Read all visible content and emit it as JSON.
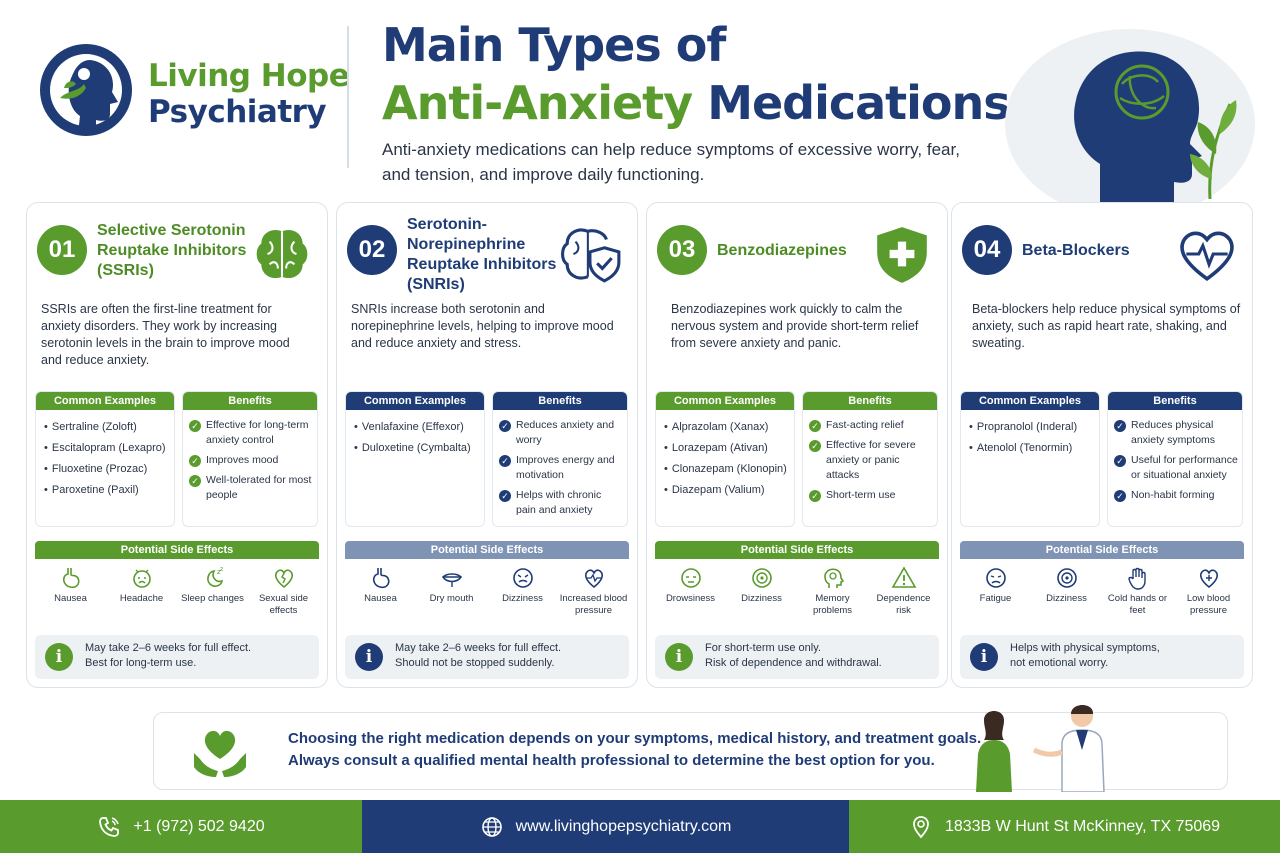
{
  "brand": {
    "line1": "Living Hope",
    "line2": "Psychiatry"
  },
  "header": {
    "title_line1": "Main Types of",
    "title_line2_green": "Anti-Anxiety",
    "title_line2_blue": "Medications",
    "subtitle": "Anti-anxiety medications can help reduce symptoms of excessive worry, fear, and tension, and improve daily functioning."
  },
  "colors": {
    "green": "#5a9b2e",
    "navy": "#1f3c77"
  },
  "cards": [
    {
      "number": "01",
      "name": "Selective Serotonin Reuptake Inhibitors (SSRIs)",
      "icon": "brain-icon",
      "description": "SSRIs are often the first-line treatment for anxiety disorders. They work by increasing serotonin levels in the brain to improve mood and reduce anxiety.",
      "examples_header": "Common Examples",
      "examples": [
        "Sertraline (Zoloft)",
        "Escitalopram (Lexapro)",
        "Fluoxetine (Prozac)",
        "Paroxetine (Paxil)"
      ],
      "benefits_header": "Benefits",
      "benefits": [
        "Effective for long-term anxiety control",
        "Improves mood",
        "Well-tolerated for most people"
      ],
      "side_effects_header": "Potential Side Effects",
      "side_effects": [
        "Nausea",
        "Headache",
        "Sleep changes",
        "Sexual side effects"
      ],
      "note_line1": "May take 2–6 weeks for full effect.",
      "note_line2": "Best for long-term use."
    },
    {
      "number": "02",
      "name": "Serotonin-Norepinephrine Reuptake Inhibitors (SNRIs)",
      "icon": "brain-shield-icon",
      "description": "SNRIs increase both serotonin and norepinephrine levels, helping to improve mood and reduce anxiety and stress.",
      "examples_header": "Common Examples",
      "examples": [
        "Venlafaxine (Effexor)",
        "Duloxetine (Cymbalta)"
      ],
      "benefits_header": "Benefits",
      "benefits": [
        "Reduces anxiety and worry",
        "Improves energy and motivation",
        "Helps with chronic pain and anxiety"
      ],
      "side_effects_header": "Potential Side Effects",
      "side_effects": [
        "Nausea",
        "Dry mouth",
        "Dizziness",
        "Increased blood pressure"
      ],
      "note_line1": "May take 2–6 weeks for full effect.",
      "note_line2": "Should not be stopped suddenly."
    },
    {
      "number": "03",
      "name": "Benzodiazepines",
      "icon": "medical-shield-icon",
      "description": "Benzodiazepines work quickly to calm the nervous system and provide short-term relief from severe anxiety and panic.",
      "examples_header": "Common Examples",
      "examples": [
        "Alprazolam (Xanax)",
        "Lorazepam (Ativan)",
        "Clonazepam (Klonopin)",
        "Diazepam (Valium)"
      ],
      "benefits_header": "Benefits",
      "benefits": [
        "Fast-acting relief",
        "Effective for severe anxiety or panic attacks",
        "Short-term use"
      ],
      "side_effects_header": "Potential Side Effects",
      "side_effects": [
        "Drowsiness",
        "Dizziness",
        "Memory problems",
        "Dependence risk"
      ],
      "note_line1": "For short-term use only.",
      "note_line2": "Risk of dependence and withdrawal."
    },
    {
      "number": "04",
      "name": "Beta-Blockers",
      "icon": "heart-pulse-icon",
      "description": "Beta-blockers help reduce physical symptoms of anxiety, such as rapid heart rate, shaking, and sweating.",
      "examples_header": "Common Examples",
      "examples": [
        "Propranolol (Inderal)",
        "Atenolol (Tenormin)"
      ],
      "benefits_header": "Benefits",
      "benefits": [
        "Reduces physical anxiety symptoms",
        "Useful for performance or situational anxiety",
        "Non-habit forming"
      ],
      "side_effects_header": "Potential Side Effects",
      "side_effects": [
        "Fatigue",
        "Dizziness",
        "Cold hands or feet",
        "Low blood pressure"
      ],
      "note_line1": "Helps with physical symptoms,",
      "note_line2": "not emotional worry."
    }
  ],
  "banner": {
    "line1": "Choosing the right medication depends on your symptoms, medical history, and treatment goals.",
    "line2": "Always consult a qualified mental health professional to determine the best option for you."
  },
  "footer": {
    "phone": "+1 (972) 502 9420",
    "website": "www.livinghopepsychiatry.com",
    "address": "1833B W Hunt St McKinney, TX 75069"
  }
}
